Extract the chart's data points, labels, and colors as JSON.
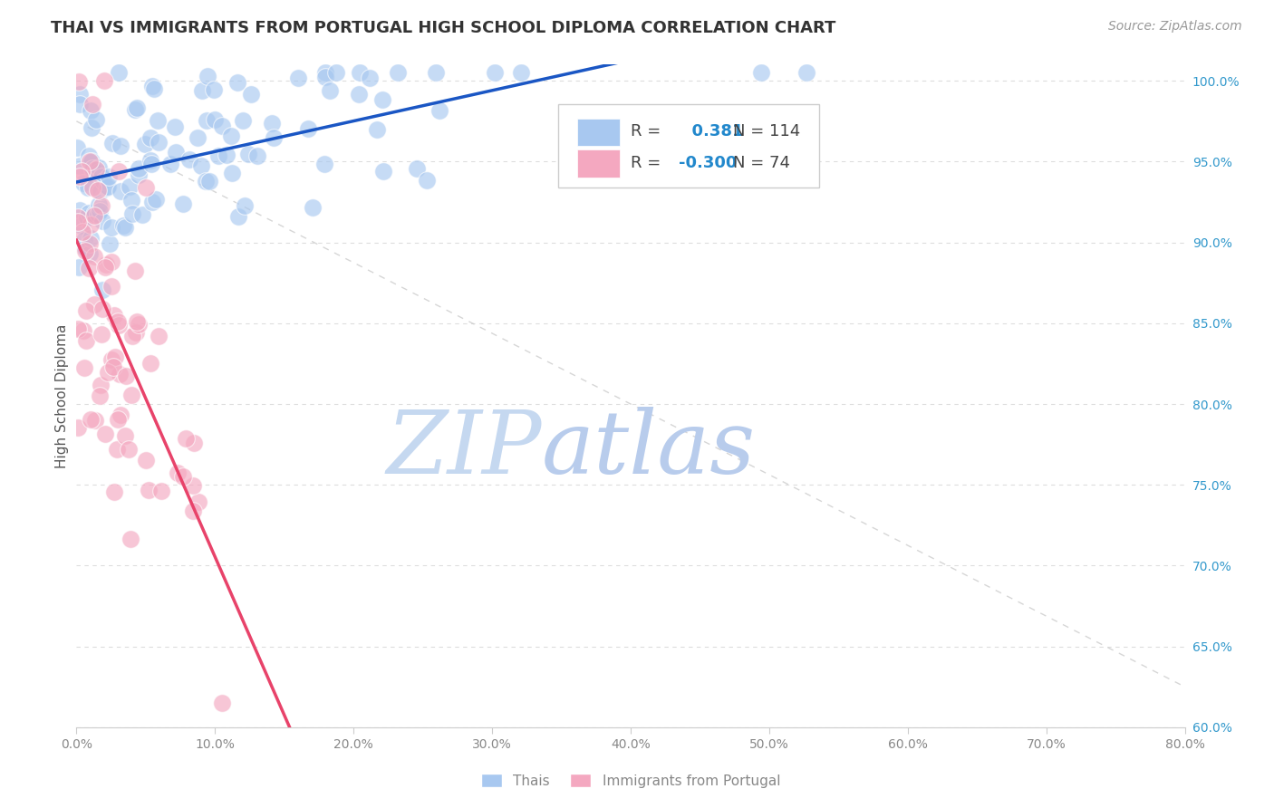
{
  "title": "THAI VS IMMIGRANTS FROM PORTUGAL HIGH SCHOOL DIPLOMA CORRELATION CHART",
  "source": "Source: ZipAtlas.com",
  "ylabel": "High School Diploma",
  "xmin": 0.0,
  "xmax": 0.8,
  "ymin": 0.6,
  "ymax": 1.01,
  "blue_R": 0.381,
  "blue_N": 114,
  "pink_R": -0.3,
  "pink_N": 74,
  "blue_color": "#a8c8f0",
  "pink_color": "#f4a8c0",
  "blue_line_color": "#1a56c4",
  "pink_line_color": "#e8436a",
  "diag_line_color": "#cccccc",
  "watermark_zip_color": "#c5d8f0",
  "watermark_atlas_color": "#b8ccec",
  "background_color": "#ffffff",
  "grid_color": "#dddddd",
  "right_tick_color": "#3399cc",
  "title_color": "#333333",
  "source_color": "#999999",
  "tick_color": "#888888",
  "ylabel_color": "#555555",
  "legend_R_color": "#2288cc",
  "legend_label_color": "#444444",
  "title_fontsize": 13,
  "source_fontsize": 10,
  "legend_fontsize": 13,
  "tick_fontsize": 10,
  "ylabel_fontsize": 11,
  "blue_scatter_size": 200,
  "pink_scatter_size": 200,
  "blue_alpha": 0.65,
  "pink_alpha": 0.65
}
